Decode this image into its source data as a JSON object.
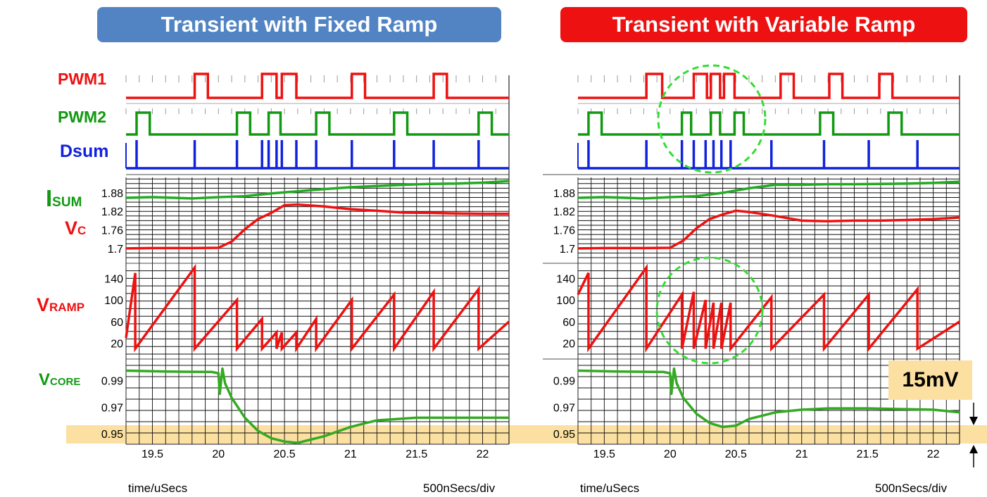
{
  "titles": {
    "left": "Transient with Fixed Ramp",
    "right": "Transient with Variable Ramp"
  },
  "labels": {
    "pwm1": "PWM1",
    "pwm2": "PWM2",
    "dsum": "Dsum",
    "isum_main": "I",
    "isum_sub": "SUM",
    "vc_main": "V",
    "vc_sub": "C",
    "vramp_main": "V",
    "vramp_sub": "RAMP",
    "vcore_main": "V",
    "vcore_sub": "CORE"
  },
  "footer": {
    "xlabel": "time/uSecs",
    "scale": "500nSecs/div"
  },
  "annotation": {
    "delta": "15mV"
  },
  "colors": {
    "pwm1": "#ee1111",
    "pwm2": "#119911",
    "dsum": "#1122dd",
    "isum": "#22aa22",
    "vc": "#ee1111",
    "vramp": "#ee1111",
    "vcore": "#33aa22",
    "highlight": "#fbe0a1",
    "circle": "#33dd33",
    "title_left_bg": "#5284c4",
    "title_right_bg": "#ee1111"
  },
  "chart_data": [
    {
      "name": "fixed_ramp",
      "type": "line",
      "xlabel": "time/uSecs",
      "x_ticks": [
        19.5,
        20,
        20.5,
        21,
        21.5,
        22
      ],
      "xlim": [
        19.3,
        22.2
      ],
      "pwm1_pulses": [
        [
          19.82,
          19.92
        ],
        [
          20.33,
          20.44
        ],
        [
          20.48,
          20.59
        ],
        [
          21.01,
          21.11
        ],
        [
          21.63,
          21.73
        ]
      ],
      "pwm2_pulses": [
        [
          19.38,
          19.48
        ],
        [
          20.14,
          20.24
        ],
        [
          20.38,
          20.47
        ],
        [
          20.74,
          20.84
        ],
        [
          21.33,
          21.43
        ],
        [
          21.97,
          22.07
        ]
      ],
      "dsum_spikes": [
        19.38,
        19.82,
        20.14,
        20.33,
        20.38,
        20.44,
        20.48,
        20.59,
        20.74,
        21.01,
        21.33,
        21.63,
        21.97
      ],
      "isum": {
        "ylim": [
          1.67,
          1.93
        ],
        "y_ticks": [
          1.7,
          1.76,
          1.82,
          1.88
        ],
        "x": [
          19.3,
          19.5,
          19.8,
          20.0,
          20.2,
          20.4,
          20.6,
          20.8,
          21.0,
          21.2,
          21.4,
          21.6,
          21.8,
          22.0,
          22.2
        ],
        "y": [
          1.864,
          1.866,
          1.862,
          1.866,
          1.869,
          1.878,
          1.885,
          1.892,
          1.898,
          1.902,
          1.906,
          1.909,
          1.91,
          1.913,
          1.918
        ]
      },
      "vc": {
        "ylim": [
          1.67,
          1.93
        ],
        "x": [
          19.3,
          19.5,
          19.8,
          20.0,
          20.1,
          20.2,
          20.3,
          20.4,
          20.5,
          20.6,
          20.8,
          21.0,
          21.2,
          21.4,
          21.6,
          21.8,
          22.0,
          22.2
        ],
        "y": [
          1.7,
          1.701,
          1.701,
          1.702,
          1.722,
          1.762,
          1.795,
          1.815,
          1.84,
          1.842,
          1.836,
          1.827,
          1.822,
          1.816,
          1.815,
          1.813,
          1.812,
          1.812
        ]
      },
      "vramp": {
        "ylim": [
          0,
          160
        ],
        "y_ticks": [
          20,
          60,
          100,
          140
        ],
        "segments": [
          [
            19.3,
            30,
            19.37,
            150
          ],
          [
            19.37,
            10,
            19.82,
            160
          ],
          [
            19.82,
            10,
            20.14,
            100
          ],
          [
            20.14,
            10,
            20.33,
            65
          ],
          [
            20.33,
            10,
            20.44,
            40
          ],
          [
            20.44,
            10,
            20.48,
            40
          ],
          [
            20.48,
            10,
            20.59,
            40
          ],
          [
            20.59,
            10,
            20.74,
            65
          ],
          [
            20.74,
            10,
            21.01,
            100
          ],
          [
            21.01,
            10,
            21.33,
            110
          ],
          [
            21.33,
            10,
            21.63,
            115
          ],
          [
            21.63,
            10,
            21.97,
            120
          ],
          [
            21.97,
            10,
            22.2,
            60
          ]
        ]
      },
      "vcore": {
        "ylim": [
          0.942,
          1.002
        ],
        "y_ticks": [
          0.95,
          0.97,
          0.99
        ],
        "x": [
          19.3,
          19.6,
          19.95,
          20.0,
          20.01,
          20.03,
          20.05,
          20.1,
          20.2,
          20.3,
          20.4,
          20.5,
          20.6,
          20.8,
          21.0,
          21.2,
          21.5,
          22.0,
          22.2
        ],
        "y": [
          0.9975,
          0.9968,
          0.9965,
          0.9955,
          0.98,
          0.999,
          0.988,
          0.977,
          0.962,
          0.952,
          0.9465,
          0.944,
          0.943,
          0.948,
          0.955,
          0.96,
          0.962,
          0.962,
          0.962
        ]
      }
    },
    {
      "name": "variable_ramp",
      "type": "line",
      "xlabel": "time/uSecs",
      "x_ticks": [
        19.5,
        20,
        20.5,
        21,
        21.5,
        22
      ],
      "xlim": [
        19.3,
        22.2
      ],
      "pwm1_pulses": [
        [
          19.82,
          19.94
        ],
        [
          20.18,
          20.28
        ],
        [
          20.31,
          20.38
        ],
        [
          20.41,
          20.49
        ],
        [
          20.84,
          20.94
        ],
        [
          21.21,
          21.31
        ],
        [
          21.59,
          21.69
        ]
      ],
      "pwm2_pulses": [
        [
          19.38,
          19.48
        ],
        [
          20.09,
          20.16
        ],
        [
          20.31,
          20.38
        ],
        [
          20.49,
          20.56
        ],
        [
          21.14,
          21.24
        ],
        [
          21.66,
          21.76
        ]
      ],
      "dsum_spikes": [
        19.38,
        19.82,
        20.09,
        20.18,
        20.27,
        20.33,
        20.39,
        20.46,
        20.77,
        21.17,
        21.51,
        21.88
      ],
      "isum": {
        "ylim": [
          1.67,
          1.93
        ],
        "y_ticks": [
          1.7,
          1.76,
          1.82,
          1.88
        ],
        "x": [
          19.3,
          19.5,
          19.8,
          20.0,
          20.2,
          20.4,
          20.6,
          20.8,
          21.0,
          21.2,
          21.4,
          21.6,
          21.8,
          22.0,
          22.2
        ],
        "y": [
          1.864,
          1.866,
          1.862,
          1.866,
          1.869,
          1.88,
          1.895,
          1.906,
          1.906,
          1.908,
          1.908,
          1.909,
          1.91,
          1.912,
          1.916
        ]
      },
      "vc": {
        "ylim": [
          1.67,
          1.93
        ],
        "x": [
          19.3,
          19.5,
          19.8,
          20.0,
          20.1,
          20.2,
          20.3,
          20.4,
          20.5,
          20.6,
          20.8,
          21.0,
          21.2,
          21.4,
          21.6,
          21.8,
          22.0,
          22.2
        ],
        "y": [
          1.7,
          1.701,
          1.701,
          1.702,
          1.725,
          1.765,
          1.795,
          1.81,
          1.822,
          1.818,
          1.805,
          1.79,
          1.788,
          1.79,
          1.79,
          1.792,
          1.795,
          1.8
        ]
      },
      "vramp": {
        "ylim": [
          0,
          160
        ],
        "y_ticks": [
          20,
          60,
          100,
          140
        ],
        "segments": [
          [
            19.3,
            110,
            19.38,
            150
          ],
          [
            19.38,
            10,
            19.82,
            160
          ],
          [
            19.82,
            10,
            20.09,
            110
          ],
          [
            20.09,
            10,
            20.18,
            115
          ],
          [
            20.18,
            10,
            20.27,
            100
          ],
          [
            20.27,
            10,
            20.33,
            95
          ],
          [
            20.33,
            10,
            20.39,
            95
          ],
          [
            20.39,
            10,
            20.46,
            95
          ],
          [
            20.46,
            10,
            20.77,
            105
          ],
          [
            20.77,
            10,
            21.17,
            110
          ],
          [
            21.17,
            10,
            21.51,
            110
          ],
          [
            21.51,
            10,
            21.88,
            120
          ],
          [
            21.88,
            10,
            22.2,
            60
          ]
        ]
      },
      "vcore": {
        "ylim": [
          0.942,
          1.002
        ],
        "y_ticks": [
          0.95,
          0.97,
          0.99
        ],
        "x": [
          19.3,
          19.6,
          19.95,
          20.0,
          20.01,
          20.03,
          20.05,
          20.1,
          20.2,
          20.3,
          20.4,
          20.5,
          20.6,
          20.8,
          21.0,
          21.2,
          21.5,
          22.0,
          22.2
        ],
        "y": [
          0.9975,
          0.9968,
          0.9965,
          0.9955,
          0.98,
          0.999,
          0.988,
          0.977,
          0.965,
          0.958,
          0.955,
          0.956,
          0.961,
          0.966,
          0.968,
          0.969,
          0.969,
          0.968,
          0.966
        ]
      }
    }
  ]
}
